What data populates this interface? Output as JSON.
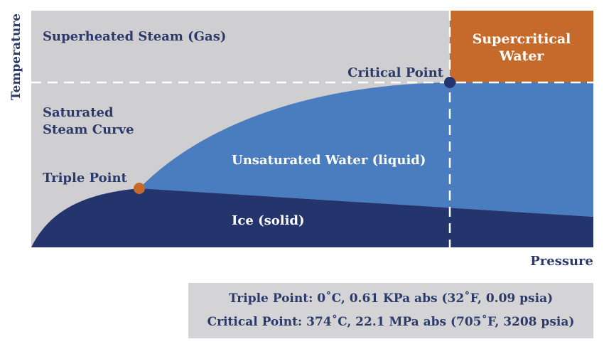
{
  "labels": {
    "y_axis": "Temperature",
    "x_axis": "Pressure",
    "superheated": "Superheated Steam (Gas)",
    "supercritical_line1": "Supercritical",
    "supercritical_line2": "Water",
    "critical_point": "Critical Point",
    "saturated_line1": "Saturated",
    "saturated_line2": "Steam Curve",
    "unsaturated": "Unsaturated Water (liquid)",
    "triple_point": "Triple Point",
    "ice": "Ice (solid)"
  },
  "footer": {
    "triple_point": "Triple Point:  0˚C, 0.61 KPa abs (32˚F, 0.09 psia)",
    "critical_point": "Critical Point:  374˚C, 22.1 MPa abs (705˚F, 3208 psia)"
  },
  "colors": {
    "gas": "#cfcfd1",
    "liquid": "#4a7cc0",
    "solid": "#24356e",
    "supercritical": "#c56a2a",
    "triple_point_marker": "#c56a2a",
    "critical_point_marker": "#24356e",
    "dashed_line": "#ffffff",
    "text_dark": "#2b3a6b",
    "text_light": "#ffffff"
  }
}
